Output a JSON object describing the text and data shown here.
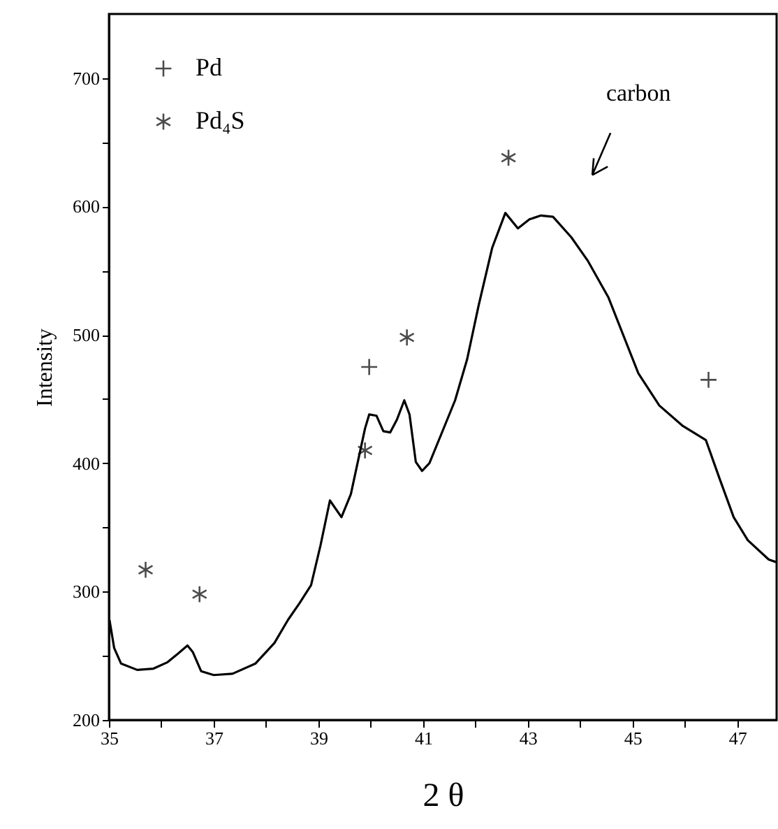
{
  "chart_data": {
    "type": "line",
    "xlabel": "2 θ",
    "ylabel": "Intensity",
    "xlim": [
      35,
      47.75
    ],
    "ylim": [
      200,
      750
    ],
    "xticks": [
      35,
      {
        "value": 36,
        "label": null
      },
      37,
      {
        "value": 38,
        "label": null
      },
      39,
      {
        "value": 40,
        "label": null
      },
      41,
      {
        "value": 42,
        "label": null
      },
      43,
      {
        "value": 44,
        "label": null
      },
      45,
      {
        "value": 46,
        "label": null
      },
      47
    ],
    "yticks": [
      200,
      {
        "value": 250,
        "label": null
      },
      300,
      {
        "value": 350,
        "label": null
      },
      400,
      {
        "value": 450,
        "label": null
      },
      500,
      {
        "value": 550,
        "label": null
      },
      600,
      {
        "value": 650,
        "label": null
      },
      700
    ],
    "grid": false,
    "legend": "top left",
    "series": [
      {
        "color": "#000000",
        "line_style": "solid",
        "x": [
          35.01,
          35.1,
          35.23,
          35.54,
          35.85,
          36.12,
          36.3,
          36.5,
          36.6,
          36.76,
          37.0,
          37.36,
          37.8,
          38.16,
          38.42,
          38.64,
          38.86,
          39.04,
          39.22,
          39.44,
          39.62,
          39.89,
          39.97,
          40.11,
          40.24,
          40.37,
          40.5,
          40.64,
          40.74,
          40.86,
          40.98,
          41.12,
          41.35,
          41.61,
          41.84,
          42.06,
          42.32,
          42.57,
          42.81,
          43.03,
          43.25,
          43.48,
          43.83,
          44.14,
          44.54,
          45.11,
          45.51,
          45.96,
          46.4,
          46.67,
          46.93,
          47.2,
          47.6,
          47.74
        ],
        "values": [
          278,
          256,
          244,
          239,
          240,
          245,
          251,
          258,
          253,
          238,
          235,
          236,
          244,
          260,
          278,
          291,
          305,
          336,
          371,
          358,
          376,
          427,
          438,
          437,
          425,
          424,
          434,
          449,
          438,
          401,
          394,
          400,
          423,
          449,
          481,
          523,
          568,
          595,
          583,
          590,
          593,
          592,
          576,
          558,
          529,
          470,
          445,
          429,
          418,
          387,
          358,
          340,
          325,
          323
        ]
      },
      {
        "type": "scatter",
        "name": "Pd",
        "color": "#000000",
        "marker": "cross",
        "x": [
          39.97,
          46.45
        ],
        "values": [
          475,
          465
        ]
      },
      {
        "type": "scatter",
        "name": "Pd₄S",
        "color": "#000000",
        "x": [
          35.7,
          36.73,
          39.89,
          40.69,
          42.63
        ],
        "values": [
          317,
          298,
          410,
          498,
          638
        ]
      }
    ],
    "annotations": [
      "carbon"
    ]
  }
}
